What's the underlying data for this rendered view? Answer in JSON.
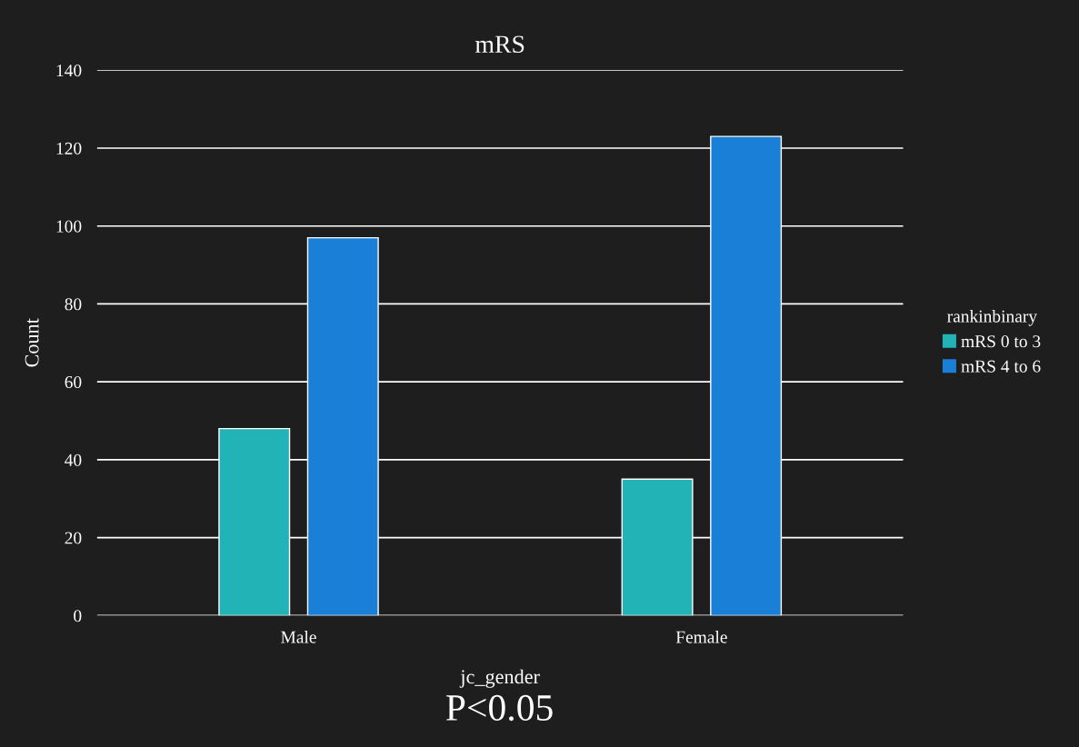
{
  "chart_data": {
    "type": "bar",
    "title": "mRS",
    "xlabel": "jc_gender",
    "ylabel": "Count",
    "legend_title": "rankinbinary",
    "categories": [
      "Male",
      "Female"
    ],
    "series": [
      {
        "name": "mRS 0 to 3",
        "color": "#22b3b6",
        "values": [
          48,
          35
        ]
      },
      {
        "name": "mRS 4 to 6",
        "color": "#1a7fd6",
        "values": [
          97,
          123
        ]
      }
    ],
    "ylim": [
      0,
      140
    ],
    "yticks": [
      0,
      20,
      40,
      60,
      80,
      100,
      120,
      140
    ],
    "grid": "y",
    "legend": "right",
    "annotations": [
      "P<0.05"
    ]
  }
}
